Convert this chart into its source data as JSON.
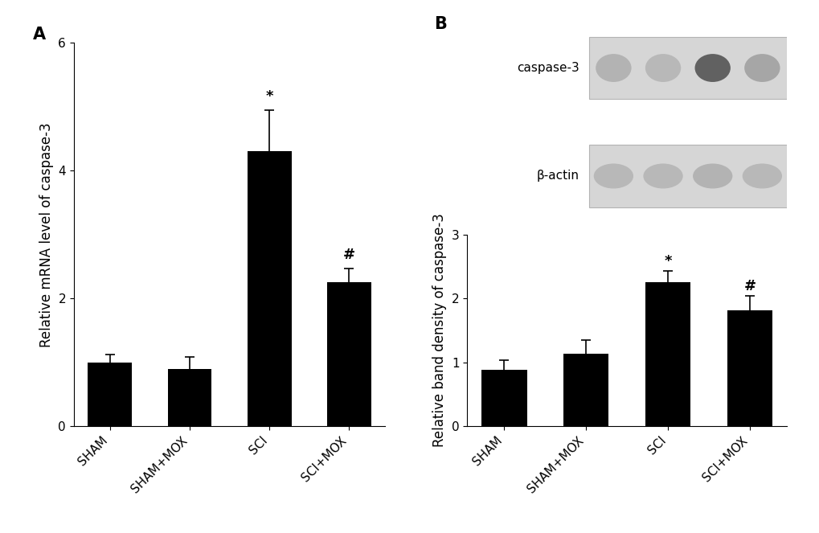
{
  "panel_A": {
    "categories": [
      "SHAM",
      "SHAM+MOX",
      "SCI",
      "SCI+MOX"
    ],
    "values": [
      1.0,
      0.9,
      4.3,
      2.25
    ],
    "errors": [
      0.12,
      0.18,
      0.65,
      0.22
    ],
    "ylabel": "Relative mRNA level of caspase-3",
    "ylim": [
      0,
      6
    ],
    "yticks": [
      0,
      2,
      4,
      6
    ],
    "annotations": [
      {
        "bar_idx": 2,
        "text": "*"
      },
      {
        "bar_idx": 3,
        "text": "#"
      }
    ],
    "label": "A"
  },
  "panel_B": {
    "categories": [
      "SHAM",
      "SHAM+MOX",
      "SCI",
      "SCI+MOX"
    ],
    "values": [
      0.88,
      1.13,
      2.25,
      1.82
    ],
    "errors": [
      0.15,
      0.22,
      0.18,
      0.22
    ],
    "ylabel": "Relative band density of caspase-3",
    "ylim": [
      0,
      3
    ],
    "yticks": [
      0,
      1,
      2,
      3
    ],
    "annotations": [
      {
        "bar_idx": 2,
        "text": "*"
      },
      {
        "bar_idx": 3,
        "text": "#"
      }
    ],
    "label": "B",
    "wb_label1": "caspase-3",
    "wb_label2": "β-actin",
    "casp3_intensities": [
      0.3,
      0.28,
      0.62,
      0.35
    ],
    "bactin_intensities": [
      0.28,
      0.28,
      0.3,
      0.28
    ]
  },
  "bar_color": "#000000",
  "background_color": "#ffffff",
  "bar_width": 0.55,
  "tick_fontsize": 11,
  "label_fontsize": 12,
  "ann_fontsize": 13,
  "panel_label_fontsize": 15,
  "gel_bg_gray": 0.84,
  "gel_border_gray": 0.7
}
